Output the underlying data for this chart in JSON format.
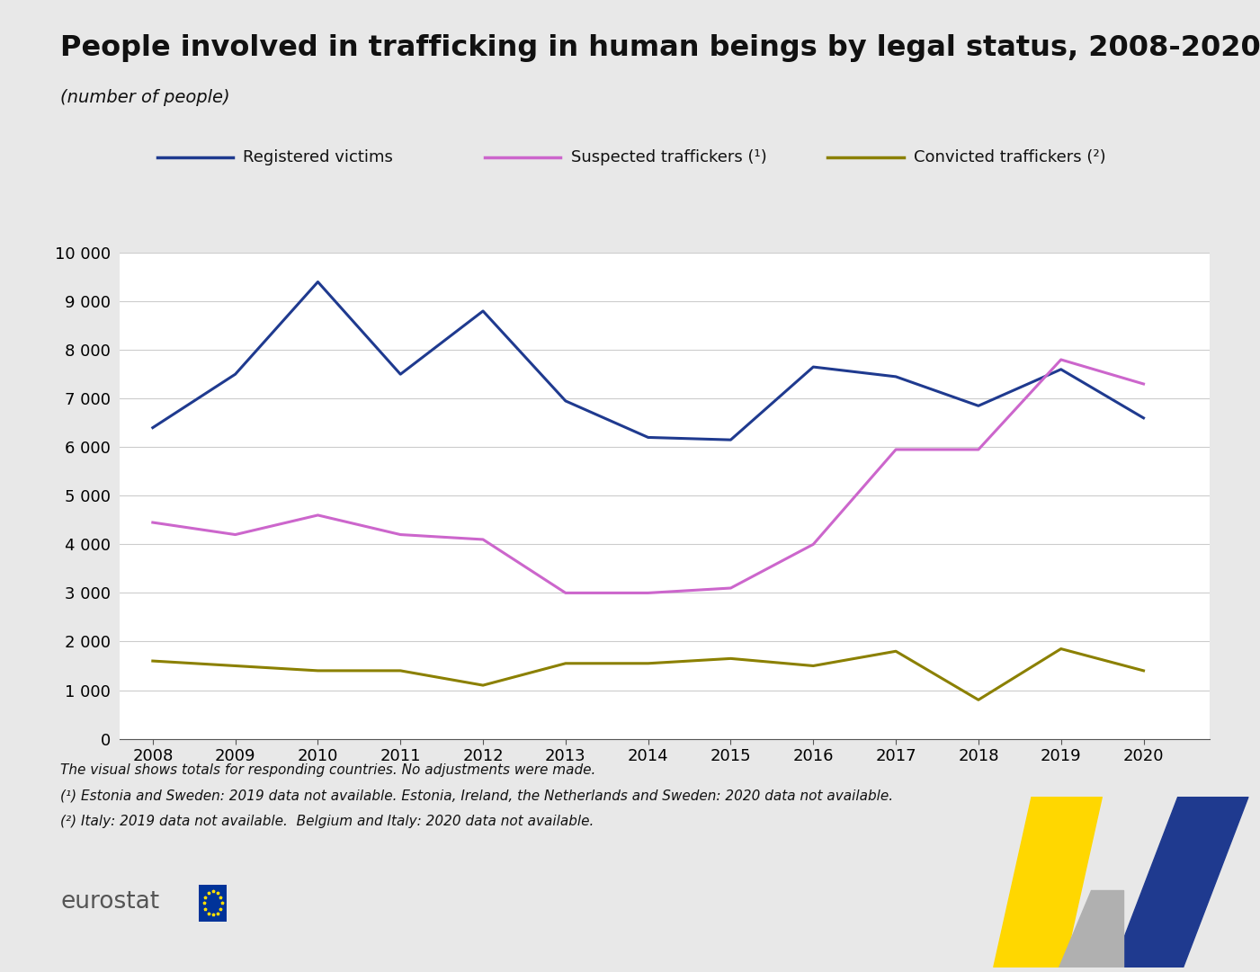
{
  "title": "People involved in trafficking in human beings by legal status, 2008-2020",
  "subtitle": "(number of people)",
  "years": [
    2008,
    2009,
    2010,
    2011,
    2012,
    2013,
    2014,
    2015,
    2016,
    2017,
    2018,
    2019,
    2020
  ],
  "registered_victims": [
    6400,
    7500,
    9400,
    7500,
    8800,
    6950,
    6200,
    6150,
    7650,
    7450,
    6850,
    7600,
    6600
  ],
  "suspected_traffickers": [
    4450,
    4200,
    4600,
    4200,
    4100,
    3000,
    3000,
    3100,
    4000,
    5950,
    5950,
    7800,
    7300
  ],
  "convicted_traffickers": [
    1600,
    1500,
    1400,
    1400,
    1100,
    1550,
    1550,
    1650,
    1500,
    1800,
    800,
    1850,
    1400
  ],
  "registered_color": "#1f3a8f",
  "suspected_color": "#cc66cc",
  "convicted_color": "#8b8000",
  "background_color": "#e8e8e8",
  "plot_bg_color": "#ffffff",
  "ylim": [
    0,
    10000
  ],
  "yticks": [
    0,
    1000,
    2000,
    3000,
    4000,
    5000,
    6000,
    7000,
    8000,
    9000,
    10000
  ],
  "ytick_labels": [
    "0",
    "1 000",
    "2 000",
    "3 000",
    "4 000",
    "5 000",
    "6 000",
    "7 000",
    "8 000",
    "9 000",
    "10 000"
  ],
  "legend_labels": [
    "Registered victims",
    "Suspected traffickers (¹)",
    "Convicted traffickers (²)"
  ],
  "footnote1": "The visual shows totals for responding countries. No adjustments were made.",
  "footnote2": "(¹) Estonia and Sweden: 2019 data not available. Estonia, Ireland, the Netherlands and Sweden: 2020 data not available.",
  "footnote3": "(²) Italy: 2019 data not available.  Belgium and Italy: 2020 data not available."
}
